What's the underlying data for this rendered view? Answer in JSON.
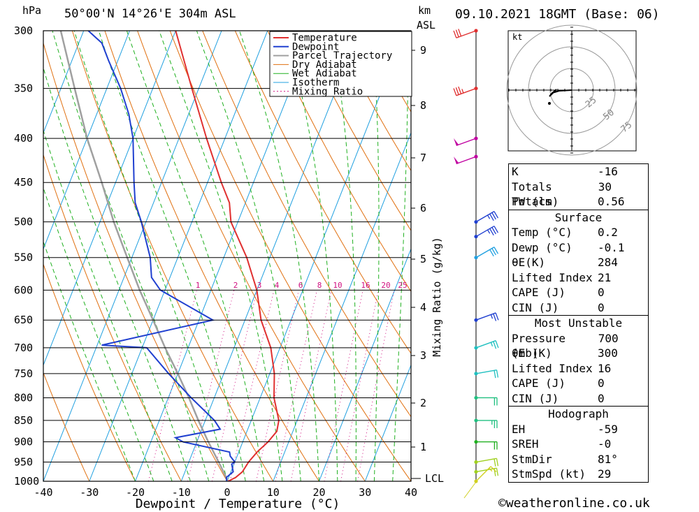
{
  "header": {
    "hpa_label": "hPa",
    "location": "50°00'N 14°26'E 304m ASL",
    "km_label": "km",
    "asl_label": "ASL",
    "datetime": "09.10.2021 18GMT (Base: 06)"
  },
  "footer": {
    "copyright": "©weatheronline.co.uk"
  },
  "colors": {
    "temperature": "#e03030",
    "dewpoint": "#2040d0",
    "parcel": "#a0a0a0",
    "dry_adiabat": "#e07010",
    "wet_adiabat": "#20b020",
    "isotherm": "#20a0e0",
    "mixing_ratio": "#d01080"
  },
  "chart_data": {
    "type": "line",
    "xlabel": "Dewpoint / Temperature (°C)",
    "ylabel": "hPa",
    "right_label": "Mixing Ratio (g/kg)",
    "xlim": [
      -40,
      40
    ],
    "ylim": [
      1000,
      300
    ],
    "x_ticks": [
      "-40",
      "-30",
      "-20",
      "-10",
      "0",
      "10",
      "20",
      "30",
      "40"
    ],
    "pressure_ticks": [
      300,
      350,
      400,
      450,
      500,
      550,
      600,
      650,
      700,
      750,
      800,
      850,
      900,
      950,
      1000
    ],
    "km_ticks": [
      "1",
      "2",
      "3",
      "4",
      "5",
      "6",
      "7",
      "8",
      "9"
    ],
    "lcl_label": "LCL",
    "mixing_ratio_labels": [
      "1",
      "2",
      "3",
      "4",
      "6",
      "8",
      "10",
      "16",
      "20",
      "25"
    ],
    "legend": [
      "Temperature",
      "Dewpoint",
      "Parcel Trajectory",
      "Dry Adiabat",
      "Wet Adiabat",
      "Isotherm",
      "Mixing Ratio"
    ],
    "grid": true,
    "series": [
      {
        "name": "Temperature",
        "points": [
          [
            1000,
            0.2
          ],
          [
            990,
            1.5
          ],
          [
            975,
            2.5
          ],
          [
            950,
            3.0
          ],
          [
            925,
            4.0
          ],
          [
            900,
            5.5
          ],
          [
            875,
            6.5
          ],
          [
            850,
            6.0
          ],
          [
            800,
            3.0
          ],
          [
            750,
            1.0
          ],
          [
            700,
            -2.0
          ],
          [
            650,
            -6.5
          ],
          [
            600,
            -10.0
          ],
          [
            550,
            -15.0
          ],
          [
            500,
            -21.5
          ],
          [
            475,
            -23.5
          ],
          [
            450,
            -27.0
          ],
          [
            400,
            -34.0
          ],
          [
            350,
            -41.5
          ],
          [
            300,
            -50.0
          ]
        ]
      },
      {
        "name": "Dewpoint",
        "points": [
          [
            1000,
            -0.1
          ],
          [
            990,
            -0.5
          ],
          [
            975,
            0.5
          ],
          [
            955,
            -0.5
          ],
          [
            950,
            0.0
          ],
          [
            935,
            -1.5
          ],
          [
            925,
            -2.0
          ],
          [
            900,
            -13.0
          ],
          [
            890,
            -15.0
          ],
          [
            870,
            -6.0
          ],
          [
            850,
            -8.0
          ],
          [
            800,
            -15.0
          ],
          [
            750,
            -22.0
          ],
          [
            700,
            -29.0
          ],
          [
            695,
            -39.0
          ],
          [
            650,
            -17.0
          ],
          [
            600,
            -31.0
          ],
          [
            580,
            -34.0
          ],
          [
            550,
            -36.0
          ],
          [
            500,
            -41.0
          ],
          [
            475,
            -44.0
          ],
          [
            450,
            -46.0
          ],
          [
            400,
            -50.0
          ],
          [
            375,
            -53.0
          ],
          [
            350,
            -57.0
          ],
          [
            325,
            -62.0
          ],
          [
            310,
            -65.0
          ],
          [
            300,
            -69.0
          ]
        ]
      },
      {
        "name": "Parcel Trajectory",
        "points": [
          [
            1000,
            0.2
          ],
          [
            950,
            -3.5
          ],
          [
            900,
            -7.5
          ],
          [
            850,
            -11.5
          ],
          [
            800,
            -15.5
          ],
          [
            750,
            -20.0
          ],
          [
            700,
            -25.0
          ],
          [
            650,
            -30.0
          ],
          [
            600,
            -35.5
          ],
          [
            550,
            -41.0
          ],
          [
            500,
            -47.0
          ],
          [
            450,
            -53.0
          ],
          [
            400,
            -60.0
          ],
          [
            350,
            -67.0
          ],
          [
            300,
            -75.0
          ]
        ]
      }
    ]
  },
  "hodograph": {
    "unit": "kt",
    "ring_labels": [
      "25",
      "50",
      "75"
    ]
  },
  "stats": {
    "basic": [
      {
        "label": "K",
        "value": "-16"
      },
      {
        "label": "Totals Totals",
        "value": "30"
      },
      {
        "label": "PW (cm)",
        "value": "0.56"
      }
    ],
    "surface": {
      "title": "Surface",
      "rows": [
        {
          "label": "Temp (°C)",
          "value": "0.2"
        },
        {
          "label": "Dewp (°C)",
          "value": "-0.1"
        },
        {
          "label": "θE(K)",
          "value": "284"
        },
        {
          "label": "Lifted Index",
          "value": "21"
        },
        {
          "label": "CAPE (J)",
          "value": "0"
        },
        {
          "label": "CIN (J)",
          "value": "0"
        }
      ]
    },
    "most_unstable": {
      "title": "Most Unstable",
      "rows": [
        {
          "label": "Pressure (mb)",
          "value": "700"
        },
        {
          "label": "θE (K)",
          "value": "300"
        },
        {
          "label": "Lifted Index",
          "value": "16"
        },
        {
          "label": "CAPE (J)",
          "value": "0"
        },
        {
          "label": "CIN (J)",
          "value": "0"
        }
      ]
    },
    "hodograph": {
      "title": "Hodograph",
      "rows": [
        {
          "label": "EH",
          "value": "-59"
        },
        {
          "label": "SREH",
          "value": "-0"
        },
        {
          "label": "StmDir",
          "value": "81°"
        },
        {
          "label": "StmSpd (kt)",
          "value": "29"
        }
      ]
    }
  },
  "wind_barbs": [
    {
      "pressure": 300,
      "color": "#e03030",
      "dir": 250,
      "speed": 30
    },
    {
      "pressure": 350,
      "color": "#e03030",
      "dir": 250,
      "speed": 35
    },
    {
      "pressure": 400,
      "color": "#c000a0",
      "dir": 250,
      "speed": 50
    },
    {
      "pressure": 420,
      "color": "#c000a0",
      "dir": 250,
      "speed": 50
    },
    {
      "pressure": 500,
      "color": "#2040d0",
      "dir": 60,
      "speed": 35
    },
    {
      "pressure": 520,
      "color": "#2040d0",
      "dir": 60,
      "speed": 35
    },
    {
      "pressure": 550,
      "color": "#20a0e0",
      "dir": 60,
      "speed": 30
    },
    {
      "pressure": 650,
      "color": "#2040d0",
      "dir": 70,
      "speed": 25
    },
    {
      "pressure": 700,
      "color": "#20c0c0",
      "dir": 70,
      "speed": 25
    },
    {
      "pressure": 750,
      "color": "#20c0c0",
      "dir": 80,
      "speed": 20
    },
    {
      "pressure": 800,
      "color": "#20c080",
      "dir": 90,
      "speed": 20
    },
    {
      "pressure": 850,
      "color": "#20c080",
      "dir": 90,
      "speed": 25
    },
    {
      "pressure": 900,
      "color": "#20b020",
      "dir": 90,
      "speed": 20
    },
    {
      "pressure": 950,
      "color": "#a0d020",
      "dir": 80,
      "speed": 20
    },
    {
      "pressure": 975,
      "color": "#a0d020",
      "dir": 80,
      "speed": 20
    },
    {
      "pressure": 1000,
      "color": "#d0d020",
      "dir": 45,
      "speed": 15
    }
  ]
}
